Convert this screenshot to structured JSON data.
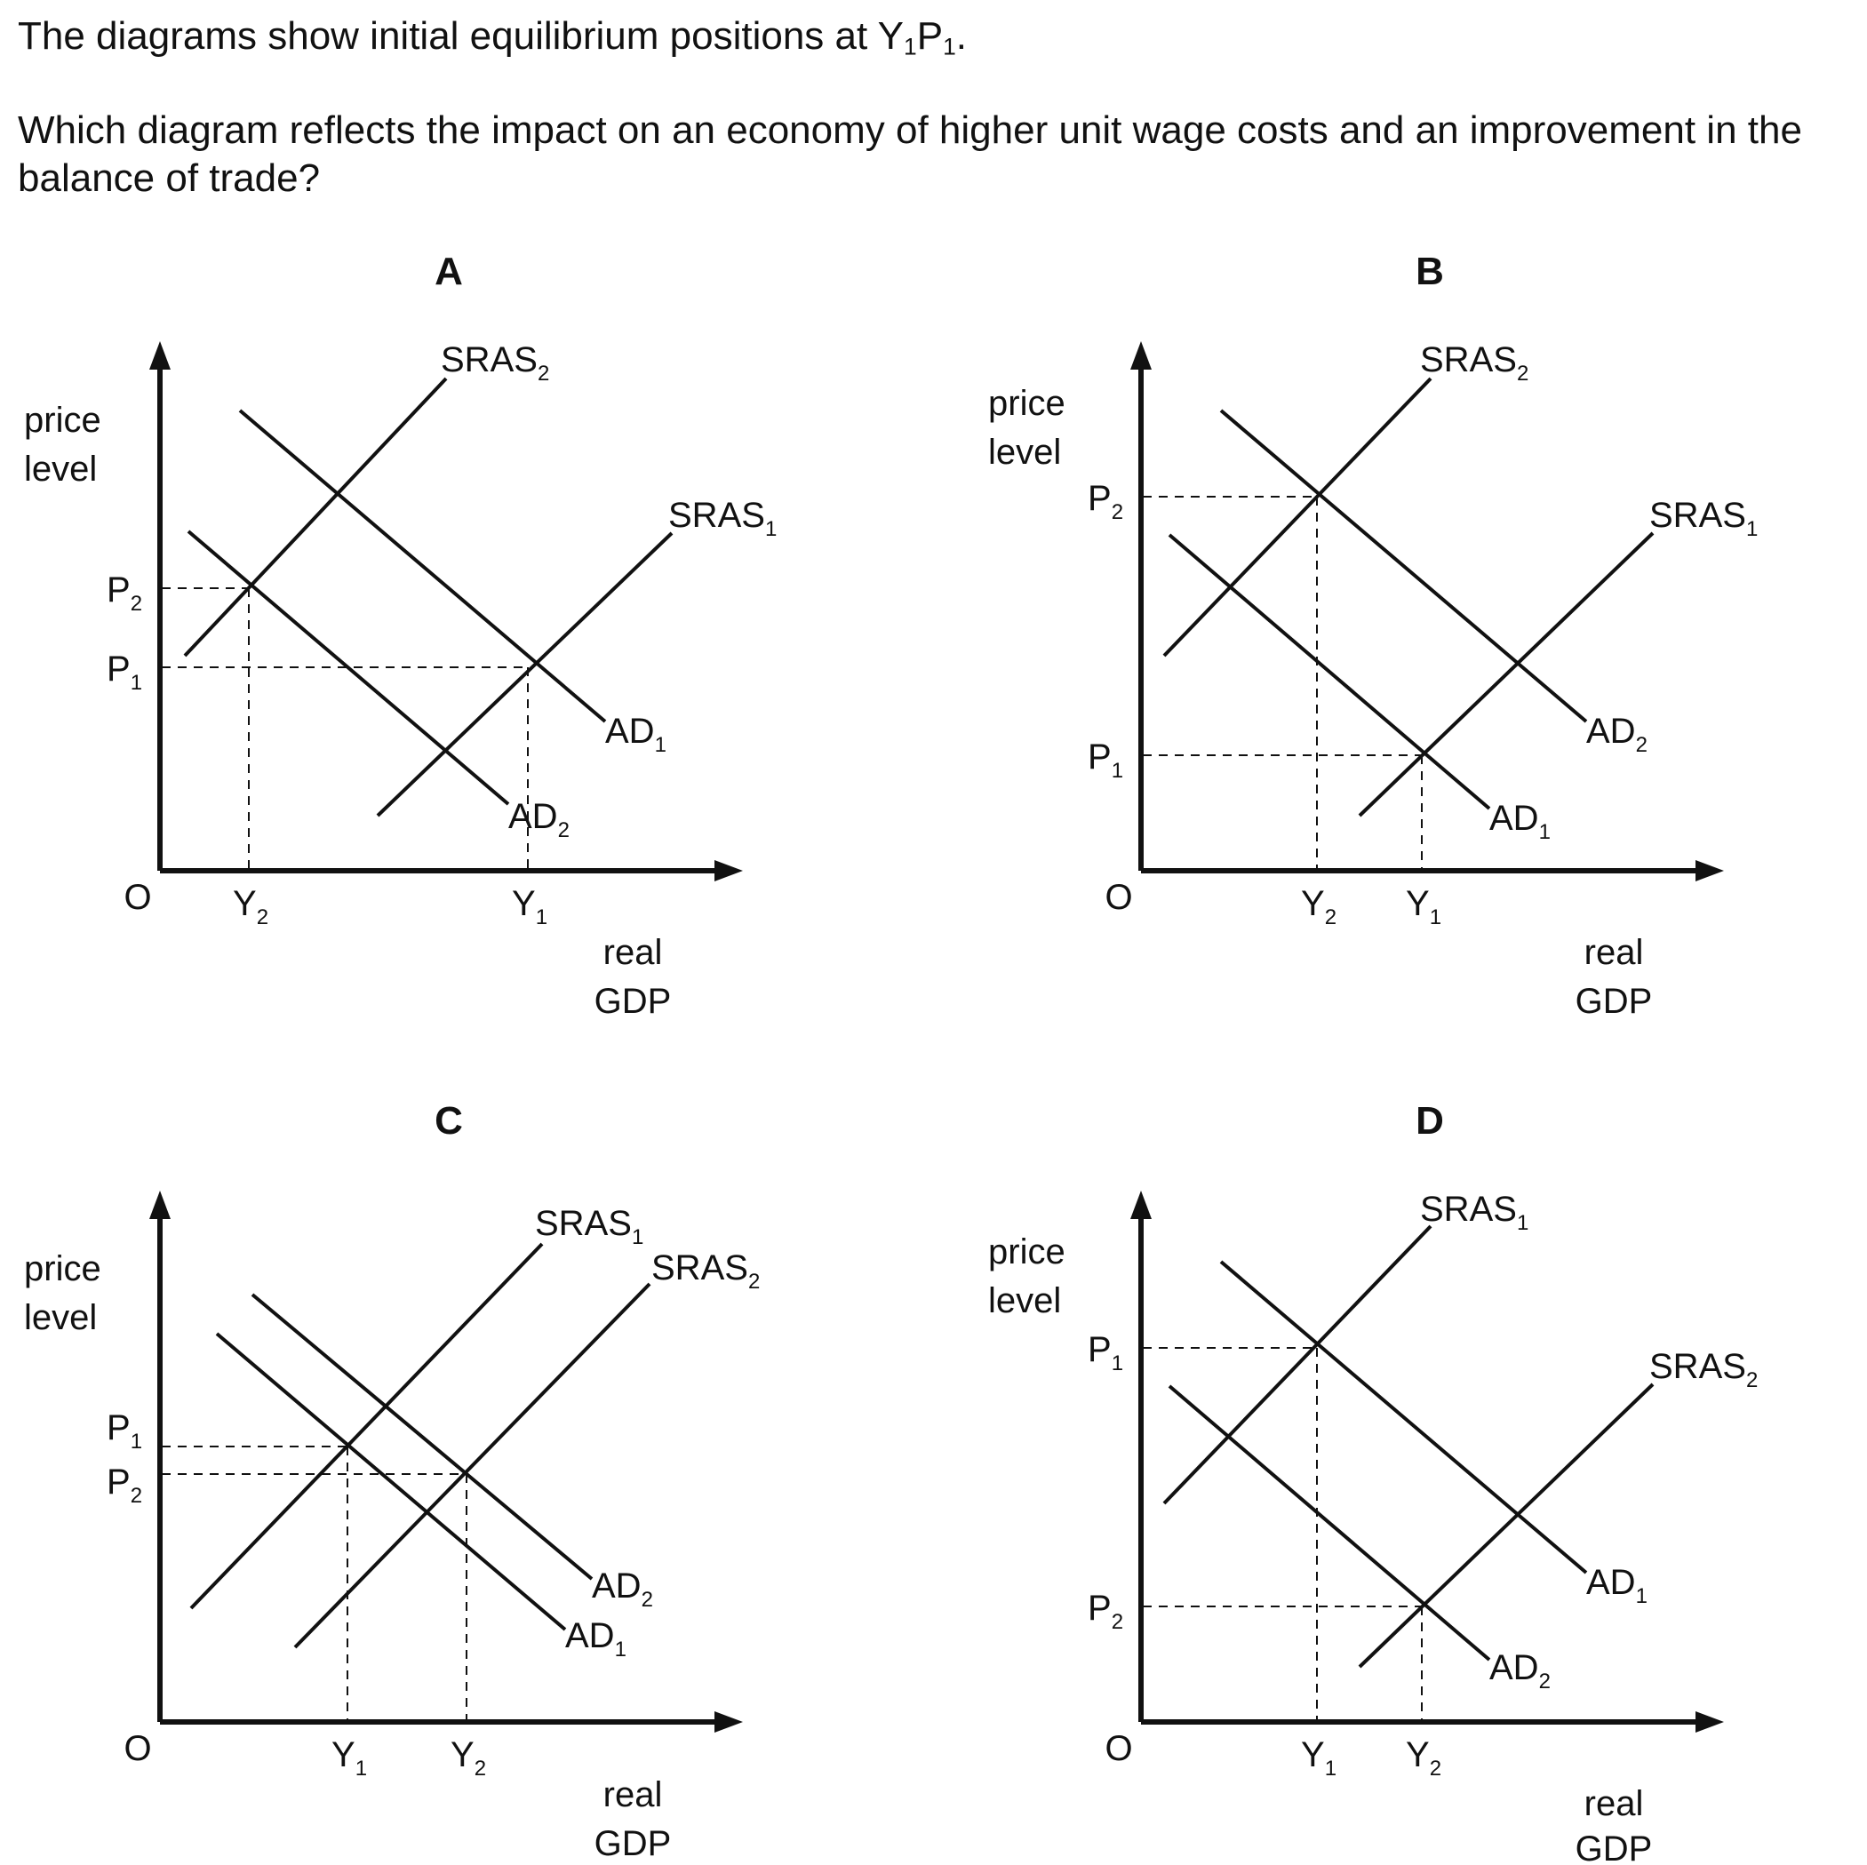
{
  "question": {
    "line1_text": "The diagrams show initial equilibrium positions at Y",
    "line1_sub1": "1",
    "line1_mid": "P",
    "line1_sub2": "1",
    "line1_end": ".",
    "line2": "Which diagram reflects the impact on an economy of higher unit wage costs and an improvement in the balance of trade?"
  },
  "axis_labels": {
    "y_line1": "price",
    "y_line2": "level",
    "x_line1": "real",
    "x_line2": "GDP",
    "origin": "O"
  },
  "diagrams": [
    {
      "letter": "A",
      "curves": [
        {
          "base": "SRAS",
          "sub": "2"
        },
        {
          "base": "SRAS",
          "sub": "1"
        },
        {
          "base": "AD",
          "sub": "1"
        },
        {
          "base": "AD",
          "sub": "2"
        }
      ],
      "price_marks": [
        {
          "base": "P",
          "sub": "2"
        },
        {
          "base": "P",
          "sub": "1"
        }
      ],
      "output_marks": [
        {
          "base": "Y",
          "sub": "2"
        },
        {
          "base": "Y",
          "sub": "1"
        }
      ]
    },
    {
      "letter": "B",
      "curves": [
        {
          "base": "SRAS",
          "sub": "2"
        },
        {
          "base": "SRAS",
          "sub": "1"
        },
        {
          "base": "AD",
          "sub": "2"
        },
        {
          "base": "AD",
          "sub": "1"
        }
      ],
      "price_marks": [
        {
          "base": "P",
          "sub": "2"
        },
        {
          "base": "P",
          "sub": "1"
        }
      ],
      "output_marks": [
        {
          "base": "Y",
          "sub": "2"
        },
        {
          "base": "Y",
          "sub": "1"
        }
      ]
    },
    {
      "letter": "C",
      "curves": [
        {
          "base": "SRAS",
          "sub": "1"
        },
        {
          "base": "SRAS",
          "sub": "2"
        },
        {
          "base": "AD",
          "sub": "2"
        },
        {
          "base": "AD",
          "sub": "1"
        }
      ],
      "price_marks": [
        {
          "base": "P",
          "sub": "1"
        },
        {
          "base": "P",
          "sub": "2"
        }
      ],
      "output_marks": [
        {
          "base": "Y",
          "sub": "1"
        },
        {
          "base": "Y",
          "sub": "2"
        }
      ]
    },
    {
      "letter": "D",
      "curves": [
        {
          "base": "SRAS",
          "sub": "1"
        },
        {
          "base": "SRAS",
          "sub": "2"
        },
        {
          "base": "AD",
          "sub": "1"
        },
        {
          "base": "AD",
          "sub": "2"
        }
      ],
      "price_marks": [
        {
          "base": "P",
          "sub": "1"
        },
        {
          "base": "P",
          "sub": "2"
        }
      ],
      "output_marks": [
        {
          "base": "Y",
          "sub": "1"
        },
        {
          "base": "Y",
          "sub": "2"
        }
      ]
    }
  ]
}
